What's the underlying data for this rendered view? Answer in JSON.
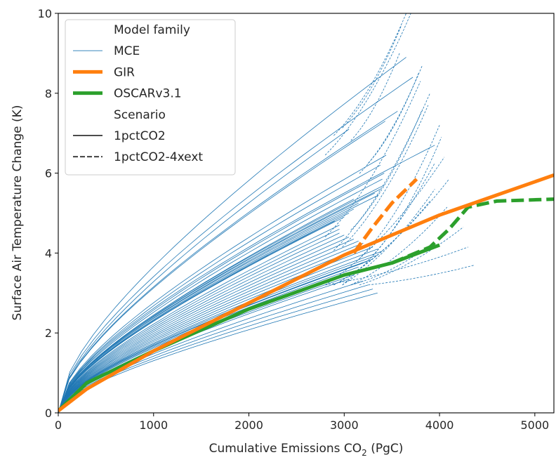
{
  "chart_data": {
    "type": "line",
    "title": "",
    "xlabel": "Cumulative Emissions CO",
    "xlabel_sub": "2",
    "xlabel_suffix": " (PgC)",
    "ylabel": "Surface Air Temperature Change (K)",
    "xlim": [
      0,
      5200
    ],
    "ylim": [
      0,
      10
    ],
    "xticks": [
      0,
      1000,
      2000,
      3000,
      4000,
      5000
    ],
    "yticks": [
      0,
      2,
      4,
      6,
      8,
      10
    ],
    "grid": false,
    "legend_position": "top-left",
    "legend": [
      {
        "label": "Model family",
        "kind": "header"
      },
      {
        "label": "MCE",
        "kind": "line",
        "color": "#1f77b4",
        "width": "thin",
        "dash": "solid"
      },
      {
        "label": "GIR",
        "kind": "line",
        "color": "#ff7f0e",
        "width": "thick",
        "dash": "solid"
      },
      {
        "label": "OSCARv3.1",
        "kind": "line",
        "color": "#2ca02c",
        "width": "thick",
        "dash": "solid"
      },
      {
        "label": "Scenario",
        "kind": "header"
      },
      {
        "label": "1pctCO2",
        "kind": "line",
        "color": "#333333",
        "width": "medium",
        "dash": "solid"
      },
      {
        "label": "1pctCO2-4xext",
        "kind": "line",
        "color": "#333333",
        "width": "medium",
        "dash": "dashed"
      }
    ],
    "series": [
      {
        "name": "GIR",
        "scenario": "1pctCO2",
        "color": "#ff7f0e",
        "x": [
          0,
          300,
          1000,
          2000,
          3000,
          4000,
          5200
        ],
        "y": [
          0.05,
          0.6,
          1.55,
          2.75,
          3.95,
          4.95,
          5.95
        ]
      },
      {
        "name": "GIR",
        "scenario": "1pctCO2-4xext",
        "color": "#ff7f0e",
        "x": [
          3100,
          3300,
          3500,
          3760
        ],
        "y": [
          4.0,
          4.65,
          5.25,
          5.85
        ]
      },
      {
        "name": "OSCARv3.1",
        "scenario": "1pctCO2",
        "color": "#2ca02c",
        "x": [
          0,
          300,
          1000,
          2000,
          3000,
          3500,
          4000
        ],
        "y": [
          0.05,
          0.75,
          1.55,
          2.6,
          3.45,
          3.75,
          4.2
        ]
      },
      {
        "name": "OSCARv3.1",
        "scenario": "1pctCO2-4xext",
        "color": "#2ca02c",
        "x": [
          3500,
          3700,
          3900,
          4100,
          4300,
          4600,
          5200
        ],
        "y": [
          3.75,
          3.95,
          4.15,
          4.6,
          5.15,
          5.3,
          5.35
        ]
      }
    ],
    "mce_family": {
      "name": "MCE",
      "color": "#1f77b4",
      "scenario_1pctCO2": {
        "end_x": [
          3650,
          3720,
          3560,
          3430,
          3050,
          3950,
          3440,
          3380,
          3420,
          3400,
          3420,
          3380,
          3320,
          3360,
          3100,
          3150,
          3100,
          3050,
          3000,
          2900,
          2950,
          2950,
          2950,
          3000,
          3050,
          3100,
          3150,
          3200,
          3250,
          3300,
          3350,
          3400,
          3350,
          3300,
          3250,
          3200,
          3150,
          3100,
          3100,
          3050,
          3200,
          3250,
          3300,
          3350
        ],
        "end_y": [
          8.9,
          8.4,
          7.55,
          7.3,
          7.1,
          6.7,
          6.45,
          6.2,
          6.0,
          5.85,
          5.7,
          5.6,
          5.5,
          5.45,
          5.35,
          5.25,
          5.1,
          5.0,
          4.9,
          4.8,
          4.7,
          4.6,
          4.5,
          4.45,
          4.4,
          4.35,
          4.3,
          4.25,
          4.2,
          4.15,
          4.1,
          4.05,
          3.95,
          3.85,
          3.8,
          3.75,
          3.65,
          3.55,
          3.45,
          3.35,
          3.3,
          3.2,
          3.1,
          3.0
        ]
      },
      "scenario_1pctCO2-4xext": {
        "end_x": [
          3700,
          3650,
          3600,
          3580,
          3820,
          3780,
          3800,
          3900,
          3880,
          3820,
          4000,
          4020,
          4050,
          4100,
          3950,
          4080,
          4250,
          4370,
          4300,
          3900,
          3950,
          3720
        ],
        "end_y": [
          10.0,
          10.0,
          9.7,
          9.0,
          8.7,
          8.5,
          8.3,
          8.0,
          7.7,
          7.6,
          7.2,
          6.9,
          6.4,
          5.85,
          5.6,
          5.15,
          4.65,
          3.7,
          4.15,
          5.3,
          6.25,
          3.9
        ]
      }
    }
  }
}
